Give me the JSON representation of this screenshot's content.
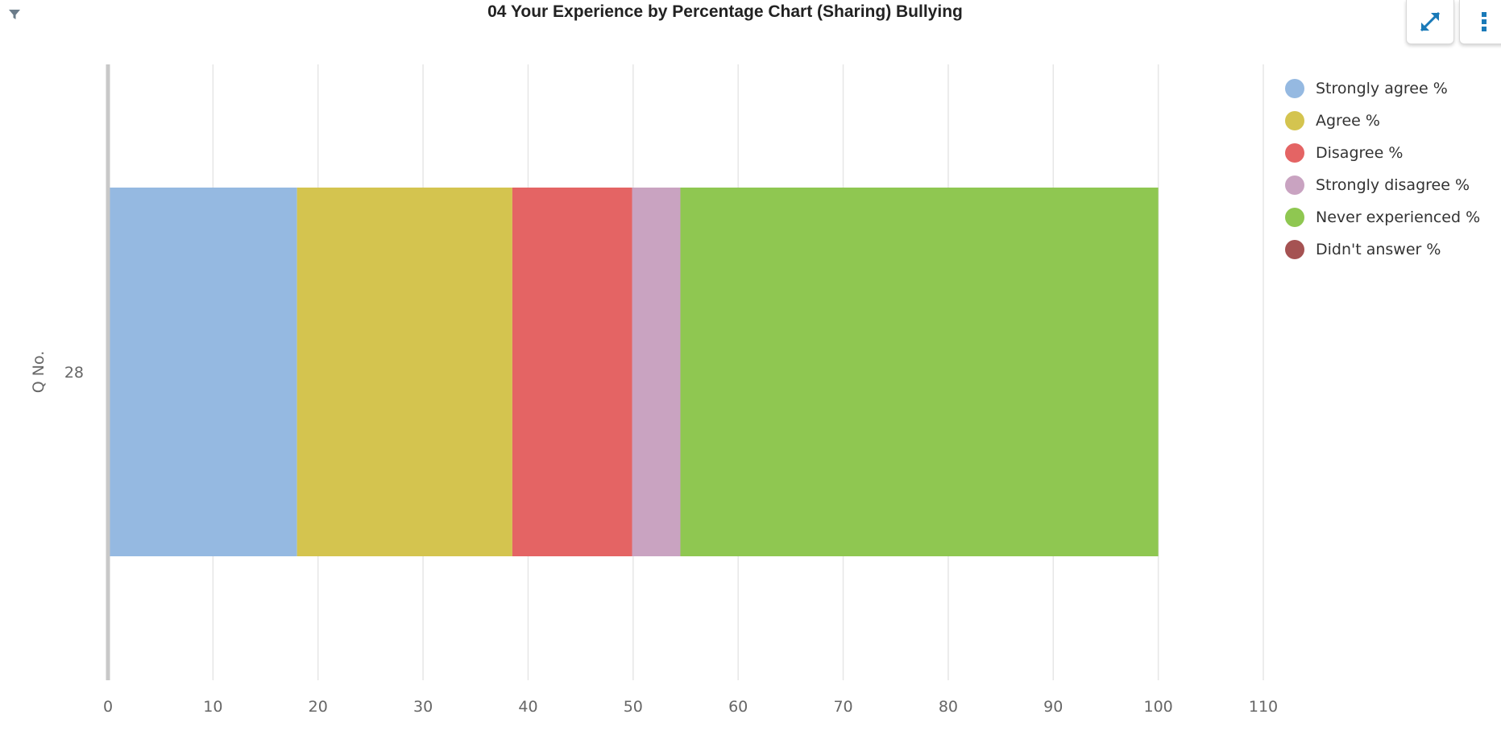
{
  "header": {
    "title": "04 Your Experience by Percentage Chart (Sharing) Bullying",
    "filter_icon": "filter-icon",
    "expand_icon": "expand-icon",
    "menu_icon": "more-vertical-icon",
    "accent_color": "#1a7ab8"
  },
  "chart_data": {
    "type": "bar",
    "orientation": "horizontal",
    "stacked": true,
    "ylabel": "Q No.",
    "xlabel": "",
    "categories": [
      "28"
    ],
    "xlim": [
      0,
      110
    ],
    "xticks": [
      "0",
      "10",
      "20",
      "30",
      "40",
      "50",
      "60",
      "70",
      "80",
      "90",
      "100",
      "110"
    ],
    "grid": true,
    "legend_position": "right",
    "series": [
      {
        "name": "Strongly agree %",
        "color": "#95b9e1",
        "values": [
          18.0
        ]
      },
      {
        "name": "Agree %",
        "color": "#d4c44f",
        "values": [
          20.5
        ]
      },
      {
        "name": "Disagree %",
        "color": "#e46464",
        "values": [
          11.4
        ]
      },
      {
        "name": "Strongly disagree %",
        "color": "#c9a3c1",
        "values": [
          4.6
        ]
      },
      {
        "name": "Never experienced %",
        "color": "#8fc751",
        "values": [
          45.5
        ]
      },
      {
        "name": "Didn't answer %",
        "color": "#a55252",
        "values": [
          0
        ]
      }
    ]
  }
}
